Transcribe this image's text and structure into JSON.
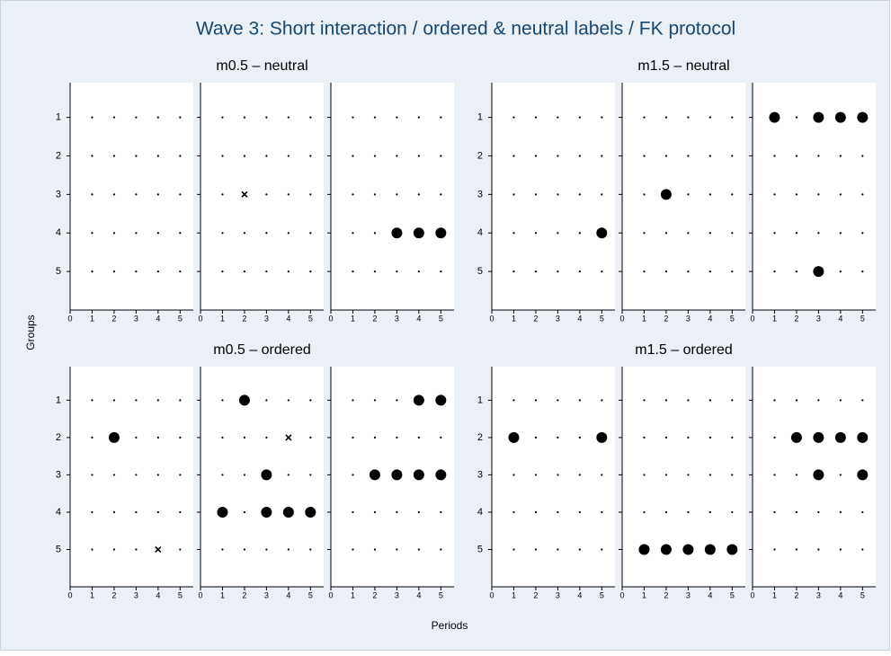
{
  "chart_data": {
    "type": "scatter",
    "title": "Wave 3: Short interaction /  ordered & neutral labels /  FK protocol",
    "x_label": "Periods",
    "y_label": "Groups",
    "xlim": [
      0,
      5.6
    ],
    "ylim": [
      6,
      0.1
    ],
    "xticks": [
      0,
      1,
      2,
      3,
      4,
      5
    ],
    "yticks": [
      1,
      2,
      3,
      4,
      5
    ],
    "dot_x": [
      1,
      2,
      3,
      4,
      5
    ],
    "dot_y": [
      1,
      2,
      3,
      4,
      5
    ],
    "groups": [
      {
        "title": "m0.5 – neutral",
        "panels": [
          {
            "points": {
              "x": [],
              "y": []
            },
            "crosses": {
              "x": [],
              "y": []
            }
          },
          {
            "points": {
              "x": [],
              "y": []
            },
            "crosses": {
              "x": [
                2
              ],
              "y": [
                3
              ]
            }
          },
          {
            "points": {
              "x": [
                3,
                4,
                5
              ],
              "y": [
                4,
                4,
                4
              ]
            },
            "crosses": {
              "x": [],
              "y": []
            }
          }
        ]
      },
      {
        "title": "m1.5 – neutral",
        "panels": [
          {
            "points": {
              "x": [
                5
              ],
              "y": [
                4
              ]
            },
            "crosses": {
              "x": [],
              "y": []
            }
          },
          {
            "points": {
              "x": [
                2
              ],
              "y": [
                3
              ]
            },
            "crosses": {
              "x": [],
              "y": []
            }
          },
          {
            "points": {
              "x": [
                1,
                3,
                4,
                5,
                3
              ],
              "y": [
                1,
                1,
                1,
                1,
                5
              ]
            },
            "crosses": {
              "x": [],
              "y": []
            }
          }
        ]
      },
      {
        "title": "m0.5 – ordered",
        "panels": [
          {
            "points": {
              "x": [
                2
              ],
              "y": [
                2
              ]
            },
            "crosses": {
              "x": [
                4
              ],
              "y": [
                5
              ]
            }
          },
          {
            "points": {
              "x": [
                2,
                3,
                1,
                3,
                4,
                5
              ],
              "y": [
                1,
                3,
                4,
                4,
                4,
                4
              ]
            },
            "crosses": {
              "x": [
                4
              ],
              "y": [
                2
              ]
            }
          },
          {
            "points": {
              "x": [
                4,
                5,
                2,
                3,
                4,
                5
              ],
              "y": [
                1,
                1,
                3,
                3,
                3,
                3
              ]
            },
            "crosses": {
              "x": [],
              "y": []
            }
          }
        ]
      },
      {
        "title": "m1.5 – ordered",
        "panels": [
          {
            "points": {
              "x": [
                1,
                5
              ],
              "y": [
                2,
                2
              ]
            },
            "crosses": {
              "x": [],
              "y": []
            }
          },
          {
            "points": {
              "x": [
                1,
                2,
                3,
                4,
                5
              ],
              "y": [
                5,
                5,
                5,
                5,
                5
              ]
            },
            "crosses": {
              "x": [],
              "y": []
            }
          },
          {
            "points": {
              "x": [
                2,
                3,
                4,
                5,
                3,
                5
              ],
              "y": [
                2,
                2,
                2,
                2,
                3,
                3
              ]
            },
            "crosses": {
              "x": [],
              "y": []
            }
          }
        ]
      }
    ]
  }
}
